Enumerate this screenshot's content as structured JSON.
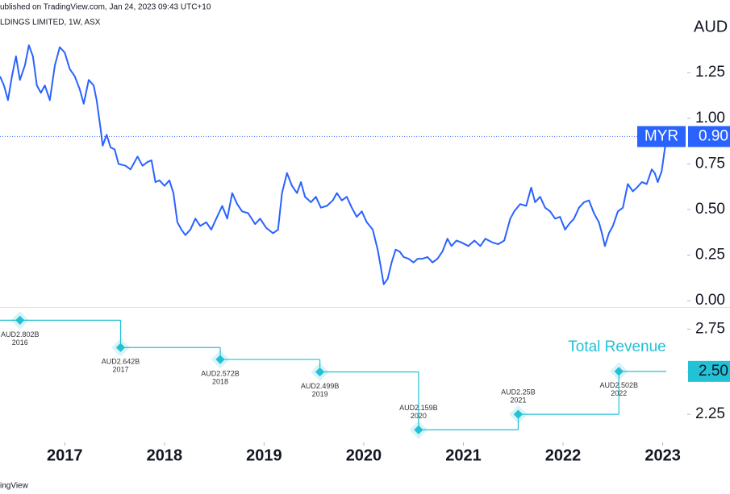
{
  "header": {
    "published": "ublished on TradingView.com, Jan 24, 2023 09:43 UTC+10",
    "symbol_title": "LDINGS LIMITED, 1W, ASX",
    "currency": "AUD",
    "footer": "ingView"
  },
  "chart_data": [
    {
      "type": "line",
      "series": [
        {
          "name": "MYR",
          "color": "#2962ff",
          "x": [
            2016.35,
            2016.39,
            2016.43,
            2016.47,
            2016.51,
            2016.55,
            2016.6,
            2016.64,
            2016.68,
            2016.72,
            2016.76,
            2016.8,
            2016.85,
            2016.9,
            2016.95,
            2017.0,
            2017.05,
            2017.1,
            2017.15,
            2017.19,
            2017.24,
            2017.29,
            2017.32,
            2017.36,
            2017.38,
            2017.42,
            2017.46,
            2017.5,
            2017.54,
            2017.61,
            2017.66,
            2017.73,
            2017.78,
            2017.83,
            2017.87,
            2017.91,
            2017.95,
            2018.0,
            2018.05,
            2018.09,
            2018.13,
            2018.17,
            2018.21,
            2018.26,
            2018.31,
            2018.36,
            2018.42,
            2018.47,
            2018.52,
            2018.58,
            2018.63,
            2018.68,
            2018.73,
            2018.78,
            2018.84,
            2018.91,
            2018.96,
            2019.02,
            2019.09,
            2019.14,
            2019.18,
            2019.23,
            2019.28,
            2019.33,
            2019.37,
            2019.41,
            2019.47,
            2019.52,
            2019.57,
            2019.63,
            2019.69,
            2019.73,
            2019.78,
            2019.83,
            2019.88,
            2019.93,
            2019.98,
            2020.03,
            2020.09,
            2020.14,
            2020.17,
            2020.2,
            2020.24,
            2020.28,
            2020.32,
            2020.36,
            2020.4,
            2020.45,
            2020.5,
            2020.54,
            2020.59,
            2020.64,
            2020.69,
            2020.74,
            2020.79,
            2020.84,
            2020.88,
            2020.93,
            2020.98,
            2021.05,
            2021.11,
            2021.17,
            2021.22,
            2021.29,
            2021.35,
            2021.41,
            2021.47,
            2021.51,
            2021.57,
            2021.63,
            2021.68,
            2021.72,
            2021.77,
            2021.82,
            2021.87,
            2021.92,
            2021.97,
            2022.02,
            2022.06,
            2022.11,
            2022.16,
            2022.21,
            2022.26,
            2022.31,
            2022.36,
            2022.39,
            2022.42,
            2022.46,
            2022.5,
            2022.55,
            2022.6,
            2022.65,
            2022.7,
            2022.74,
            2022.79,
            2022.84,
            2022.89,
            2022.92,
            2022.95,
            2022.99,
            2023.02,
            2023.04
          ],
          "values": [
            1.23,
            1.18,
            1.1,
            1.23,
            1.34,
            1.21,
            1.29,
            1.4,
            1.34,
            1.18,
            1.14,
            1.18,
            1.1,
            1.29,
            1.39,
            1.36,
            1.27,
            1.23,
            1.16,
            1.08,
            1.21,
            1.18,
            1.1,
            0.94,
            0.85,
            0.91,
            0.84,
            0.83,
            0.75,
            0.74,
            0.72,
            0.79,
            0.74,
            0.76,
            0.77,
            0.65,
            0.66,
            0.63,
            0.66,
            0.59,
            0.43,
            0.39,
            0.36,
            0.39,
            0.45,
            0.41,
            0.43,
            0.39,
            0.45,
            0.52,
            0.45,
            0.59,
            0.53,
            0.49,
            0.48,
            0.42,
            0.45,
            0.4,
            0.37,
            0.39,
            0.59,
            0.7,
            0.63,
            0.59,
            0.65,
            0.57,
            0.54,
            0.57,
            0.51,
            0.52,
            0.55,
            0.59,
            0.55,
            0.57,
            0.51,
            0.46,
            0.49,
            0.43,
            0.39,
            0.28,
            0.19,
            0.09,
            0.12,
            0.21,
            0.28,
            0.27,
            0.24,
            0.23,
            0.21,
            0.23,
            0.23,
            0.24,
            0.21,
            0.23,
            0.27,
            0.34,
            0.3,
            0.33,
            0.32,
            0.3,
            0.33,
            0.3,
            0.34,
            0.32,
            0.31,
            0.33,
            0.45,
            0.49,
            0.53,
            0.52,
            0.62,
            0.54,
            0.57,
            0.51,
            0.49,
            0.45,
            0.46,
            0.39,
            0.42,
            0.45,
            0.51,
            0.54,
            0.55,
            0.48,
            0.43,
            0.37,
            0.3,
            0.37,
            0.41,
            0.49,
            0.51,
            0.64,
            0.6,
            0.62,
            0.65,
            0.64,
            0.72,
            0.7,
            0.65,
            0.71,
            0.83,
            0.9
          ]
        }
      ],
      "last_value_label": "0.90",
      "xlim": [
        2016.35,
        2023.23
      ],
      "ylim": [
        -0.03,
        1.56
      ],
      "yticks": [
        {
          "value": 0,
          "label": "0.00"
        },
        0.25,
        {
          "value": 0.5,
          "label": "0.50"
        },
        0.75,
        {
          "value": 1,
          "label": "1.00"
        },
        1.25
      ]
    },
    {
      "type": "step",
      "series": [
        {
          "name": "Total Revenue",
          "color": "#22c1d6",
          "x": [
            2016.55,
            2017.56,
            2018.56,
            2019.56,
            2020.55,
            2021.55,
            2022.56
          ],
          "values": [
            2.802,
            2.642,
            2.572,
            2.499,
            2.159,
            2.25,
            2.502
          ],
          "value_labels": [
            "AUD2.802B",
            "AUD2.642B",
            "AUD2.572B",
            "AUD2.499B",
            "AUD2.159B",
            "AUD2.25B",
            "AUD2.502B"
          ],
          "period_labels": [
            "2016",
            "2017",
            "2018",
            "2019",
            "2020",
            "2021",
            "2022"
          ]
        }
      ],
      "last_value_label": "2.50",
      "xlim": [
        2016.35,
        2023.23
      ],
      "xticks": [
        2017,
        2018,
        2019,
        2020,
        2021,
        2022,
        2023
      ],
      "ylim": [
        2.09,
        2.87
      ],
      "yticks": [
        2.25,
        {
          "value": 2.5,
          "label": "2.50"
        },
        2.75
      ]
    }
  ]
}
